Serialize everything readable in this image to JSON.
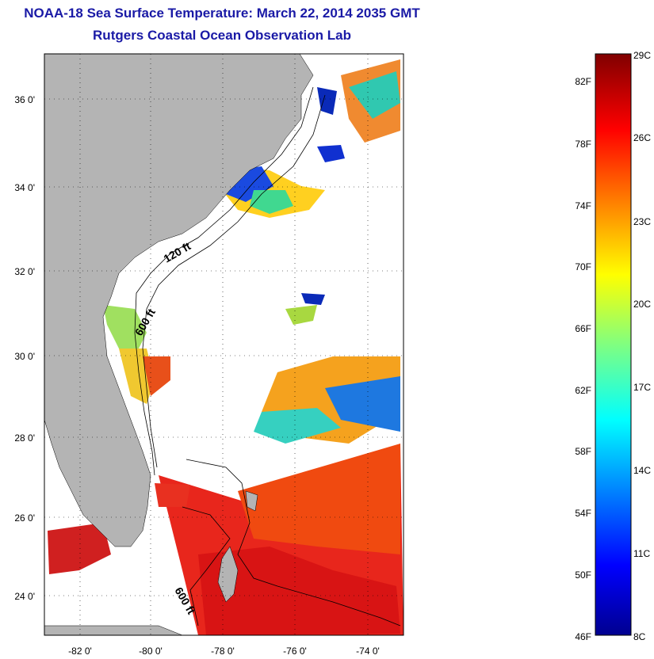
{
  "title": {
    "line1": "NOAA-18 Sea Surface Temperature:  March 22, 2014 2035 GMT",
    "line2": "Rutgers Coastal Ocean Observation Lab"
  },
  "map": {
    "lat_ticks": [
      "36 0'",
      "34 0'",
      "32 0'",
      "30 0'",
      "28 0'",
      "26 0'",
      "24 0'"
    ],
    "lon_ticks": [
      "-82 0'",
      "-80 0'",
      "-78 0'",
      "-76 0'",
      "-74 0'"
    ],
    "lat_range": [
      23.0,
      37.1
    ],
    "lon_range": [
      -83.0,
      -73.2
    ],
    "contour_labels": [
      "120 ft",
      "600 ft",
      "600 ft"
    ],
    "colors": {
      "land": "#b4b4b4",
      "background": "#ffffff",
      "grid": "#000000"
    }
  },
  "colorbar": {
    "fahrenheit_labels": [
      "82F",
      "78F",
      "74F",
      "70F",
      "66F",
      "62F",
      "58F",
      "54F",
      "50F",
      "46F"
    ],
    "celsius_labels": [
      "29C",
      "26C",
      "23C",
      "20C",
      "17C",
      "14C",
      "11C",
      "8C"
    ],
    "range_c": [
      8,
      29
    ],
    "colormap": "jet"
  }
}
